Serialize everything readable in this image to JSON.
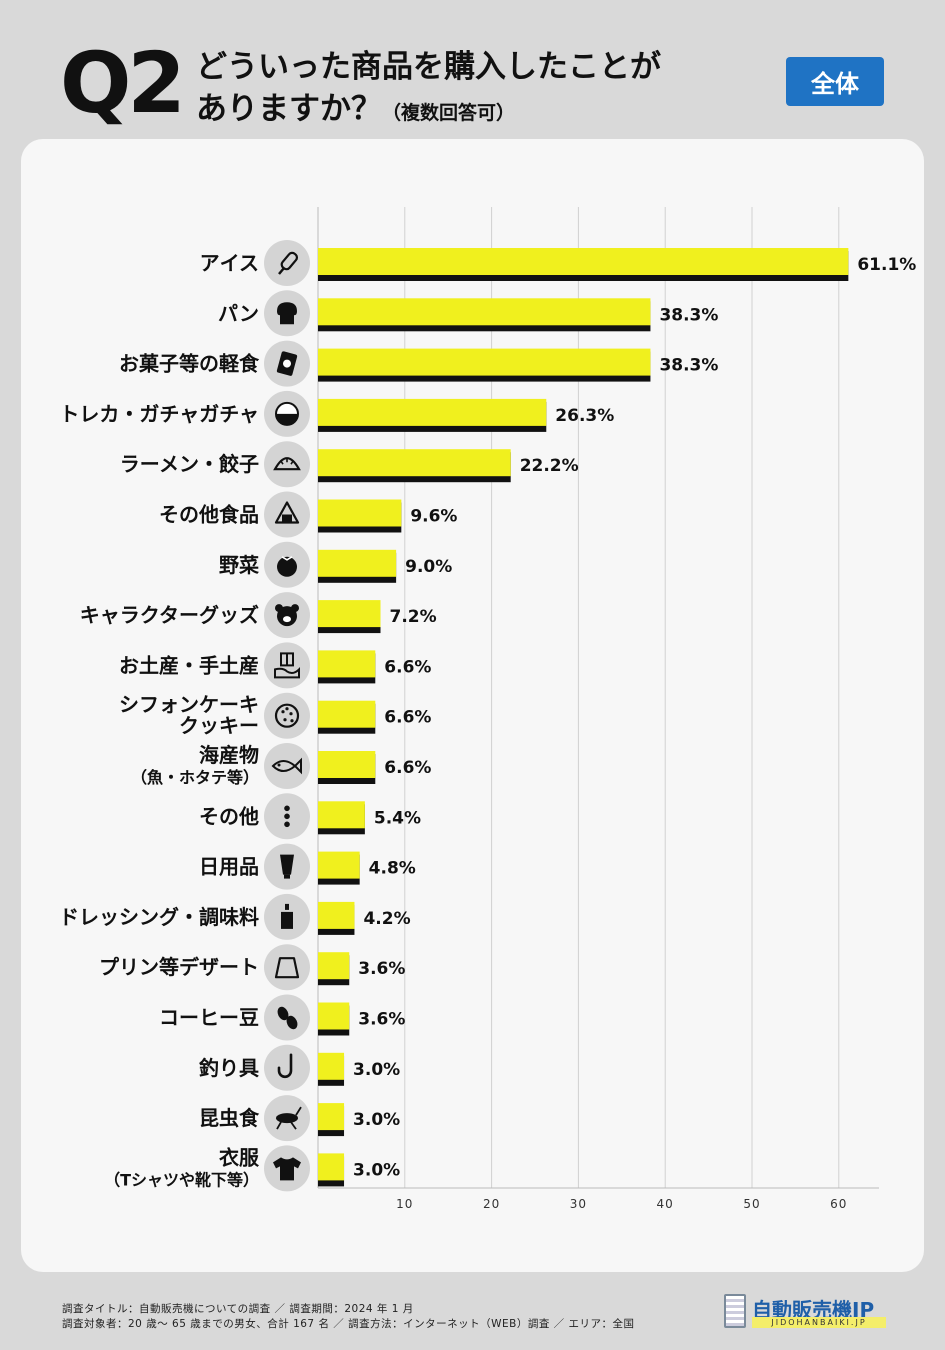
{
  "header": {
    "q_label": "Q2",
    "question_line1": "どういった商品を購入したことが",
    "question_line2": "ありますか？",
    "question_note": "（複数回答可）",
    "scope_badge": "全体"
  },
  "chart_data": {
    "type": "bar",
    "orientation": "horizontal",
    "categories": [
      "アイス",
      "パン",
      "お菓子等の軽食",
      "トレカ・ガチャガチャ",
      "ラーメン・餃子",
      "その他食品",
      "野菜",
      "キャラクターグッズ",
      "お土産・手土産",
      "シフォンケーキ クッキー",
      "海産物（魚・ホタテ等）",
      "その他",
      "日用品",
      "ドレッシング・調味料",
      "プリン等デザート",
      "コーヒー豆",
      "釣り具",
      "昆虫食",
      "衣服（Tシャツや靴下等）"
    ],
    "category_lines": [
      [
        "アイス"
      ],
      [
        "パン"
      ],
      [
        "お菓子等の軽食"
      ],
      [
        "トレカ・ガチャガチャ"
      ],
      [
        "ラーメン・餃子"
      ],
      [
        "その他食品"
      ],
      [
        "野菜"
      ],
      [
        "キャラクターグッズ"
      ],
      [
        "お土産・手土産"
      ],
      [
        "シフォンケーキ",
        "クッキー"
      ],
      [
        "海産物",
        "（魚・ホタテ等）"
      ],
      [
        "その他"
      ],
      [
        "日用品"
      ],
      [
        "ドレッシング・調味料"
      ],
      [
        "プリン等デザート"
      ],
      [
        "コーヒー豆"
      ],
      [
        "釣り具"
      ],
      [
        "昆虫食"
      ],
      [
        "衣服",
        "（Tシャツや靴下等）"
      ]
    ],
    "values": [
      61.1,
      38.3,
      38.3,
      26.3,
      22.2,
      9.6,
      9.0,
      7.2,
      6.6,
      6.6,
      6.6,
      5.4,
      4.8,
      4.2,
      3.6,
      3.6,
      3.0,
      3.0,
      3.0
    ],
    "value_labels": [
      "61.1%",
      "38.3%",
      "38.3%",
      "26.3%",
      "22.2%",
      "9.6%",
      "9.0%",
      "7.2%",
      "6.6%",
      "6.6%",
      "6.6%",
      "5.4%",
      "4.8%",
      "4.2%",
      "3.6%",
      "3.6%",
      "3.0%",
      "3.0%",
      "3.0%"
    ],
    "icons": [
      "ice-cream-icon",
      "bread-icon",
      "snack-bag-icon",
      "gacha-capsule-icon",
      "dumpling-icon",
      "onigiri-icon",
      "tomato-icon",
      "bear-face-icon",
      "gift-hand-icon",
      "cookie-icon",
      "fish-icon",
      "more-dots-icon",
      "tube-icon",
      "dressing-bottle-icon",
      "pudding-icon",
      "coffee-beans-icon",
      "fish-hook-icon",
      "cricket-icon",
      "tshirt-icon"
    ],
    "x_ticks": [
      10,
      20,
      30,
      40,
      50,
      60
    ],
    "xlim": [
      0,
      64
    ],
    "grid": true,
    "bar_color": "#f0f01e",
    "bar_shadow_color": "#111111"
  },
  "footer": {
    "line1": "調査タイトル：自動販売機についての調査 ／ 調査期間：2024 年 1 月",
    "line2": "調査対象者：20 歳〜 65 歳までの男女、合計 167 名 ／ 調査方法：インターネット（WEB）調査 ／ エリア：全国"
  },
  "logo": {
    "text": "自動販売機JP",
    "sub": "JIDOHANBAIKI.JP"
  }
}
